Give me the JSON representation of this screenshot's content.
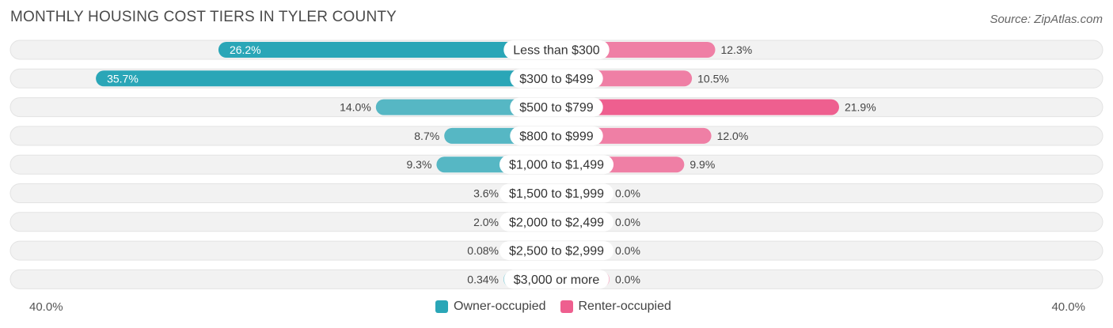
{
  "title": "MONTHLY HOUSING COST TIERS IN TYLER COUNTY",
  "source": "Source: ZipAtlas.com",
  "axis": {
    "left_label": "40.0%",
    "right_label": "40.0%"
  },
  "legend": {
    "owner": "Owner-occupied",
    "renter": "Renter-occupied"
  },
  "colors": {
    "owner_strong": "#2aa6b7",
    "owner_light": "#86cdd8",
    "renter_strong": "#ee5f8f",
    "renter_light": "#f6a8c2",
    "track": "#f2f2f2"
  },
  "chart_data": {
    "type": "bar",
    "orientation": "diverging-horizontal",
    "title": "MONTHLY HOUSING COST TIERS IN TYLER COUNTY",
    "xlim": [
      -40,
      40
    ],
    "categories": [
      "Less than $300",
      "$300 to $499",
      "$500 to $799",
      "$800 to $999",
      "$1,000 to $1,499",
      "$1,500 to $1,999",
      "$2,000 to $2,499",
      "$2,500 to $2,999",
      "$3,000 or more"
    ],
    "series": [
      {
        "name": "Owner-occupied",
        "values": [
          26.2,
          35.7,
          14.0,
          8.7,
          9.3,
          3.6,
          2.0,
          0.08,
          0.34
        ],
        "labels": [
          "26.2%",
          "35.7%",
          "14.0%",
          "8.7%",
          "9.3%",
          "3.6%",
          "2.0%",
          "0.08%",
          "0.34%"
        ]
      },
      {
        "name": "Renter-occupied",
        "values": [
          12.3,
          10.5,
          21.9,
          12.0,
          9.9,
          0.0,
          0.0,
          0.0,
          0.0
        ],
        "labels": [
          "12.3%",
          "10.5%",
          "21.9%",
          "12.0%",
          "9.9%",
          "0.0%",
          "0.0%",
          "0.0%",
          "0.0%"
        ]
      }
    ]
  }
}
